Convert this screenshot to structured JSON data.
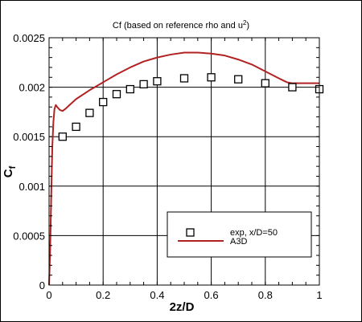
{
  "chart_data": {
    "type": "scatter",
    "title": "Cf (based on reference rho and u",
    "title_superscript": "2",
    "title_suffix": ")",
    "xlabel": "2z/D",
    "ylabel_main": "C",
    "ylabel_sub": "f",
    "xlim": [
      0,
      1
    ],
    "ylim": [
      0,
      0.0025
    ],
    "x_ticks": [
      0,
      0.2,
      0.4,
      0.6,
      0.8,
      1
    ],
    "x_tick_labels": [
      "0",
      "0.2",
      "0.4",
      "0.6",
      "0.8",
      "1"
    ],
    "y_ticks": [
      0,
      0.0005,
      0.001,
      0.0015,
      0.002,
      0.0025
    ],
    "y_tick_labels": [
      "0",
      "0.0005",
      "0.001",
      "0.0015",
      "0.002",
      "0.0025"
    ],
    "grid": true,
    "legend_position": "bottom-right",
    "series": [
      {
        "name": "exp, x/D=50",
        "kind": "markers",
        "marker": "open-square",
        "color": "#000000",
        "x": [
          0.05,
          0.1,
          0.15,
          0.2,
          0.25,
          0.3,
          0.35,
          0.4,
          0.5,
          0.6,
          0.7,
          0.8,
          0.9,
          1.0
        ],
        "y": [
          0.0015,
          0.0016,
          0.00174,
          0.00185,
          0.00193,
          0.00198,
          0.00203,
          0.00206,
          0.00209,
          0.0021,
          0.00208,
          0.00204,
          0.002,
          0.00198
        ]
      },
      {
        "name": "A3D",
        "kind": "line",
        "color": "#b22222",
        "x": [
          0.0,
          0.004,
          0.008,
          0.012,
          0.016,
          0.02,
          0.025,
          0.03,
          0.04,
          0.05,
          0.06,
          0.08,
          0.1,
          0.15,
          0.2,
          0.25,
          0.3,
          0.35,
          0.4,
          0.45,
          0.5,
          0.55,
          0.6,
          0.65,
          0.7,
          0.75,
          0.8,
          0.85,
          0.88,
          0.9,
          0.95,
          1.0
        ],
        "y": [
          0.0,
          0.00035,
          0.0009,
          0.0014,
          0.00165,
          0.00178,
          0.00182,
          0.0018,
          0.00177,
          0.00176,
          0.00178,
          0.00183,
          0.00188,
          0.00197,
          0.00205,
          0.00213,
          0.0022,
          0.00226,
          0.0023,
          0.00233,
          0.00235,
          0.00235,
          0.00234,
          0.00232,
          0.00228,
          0.00223,
          0.00216,
          0.00209,
          0.00205,
          0.00204,
          0.00204,
          0.00204
        ]
      }
    ]
  }
}
